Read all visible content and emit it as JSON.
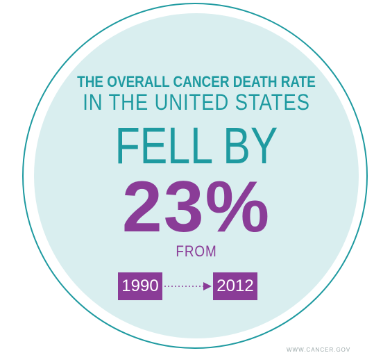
{
  "headline": {
    "line1": "THE OVERALL CANCER DEATH RATE",
    "line2": "IN THE UNITED STATES",
    "line3": "FELL BY",
    "percent": "23%",
    "from": "FROM"
  },
  "period": {
    "start_year": "1990",
    "end_year": "2012"
  },
  "credit": "WWW.CANCER.GOV",
  "colors": {
    "teal": "#1e9aa0",
    "purple": "#8a3c97",
    "circle_fill": "#d9eeef"
  }
}
